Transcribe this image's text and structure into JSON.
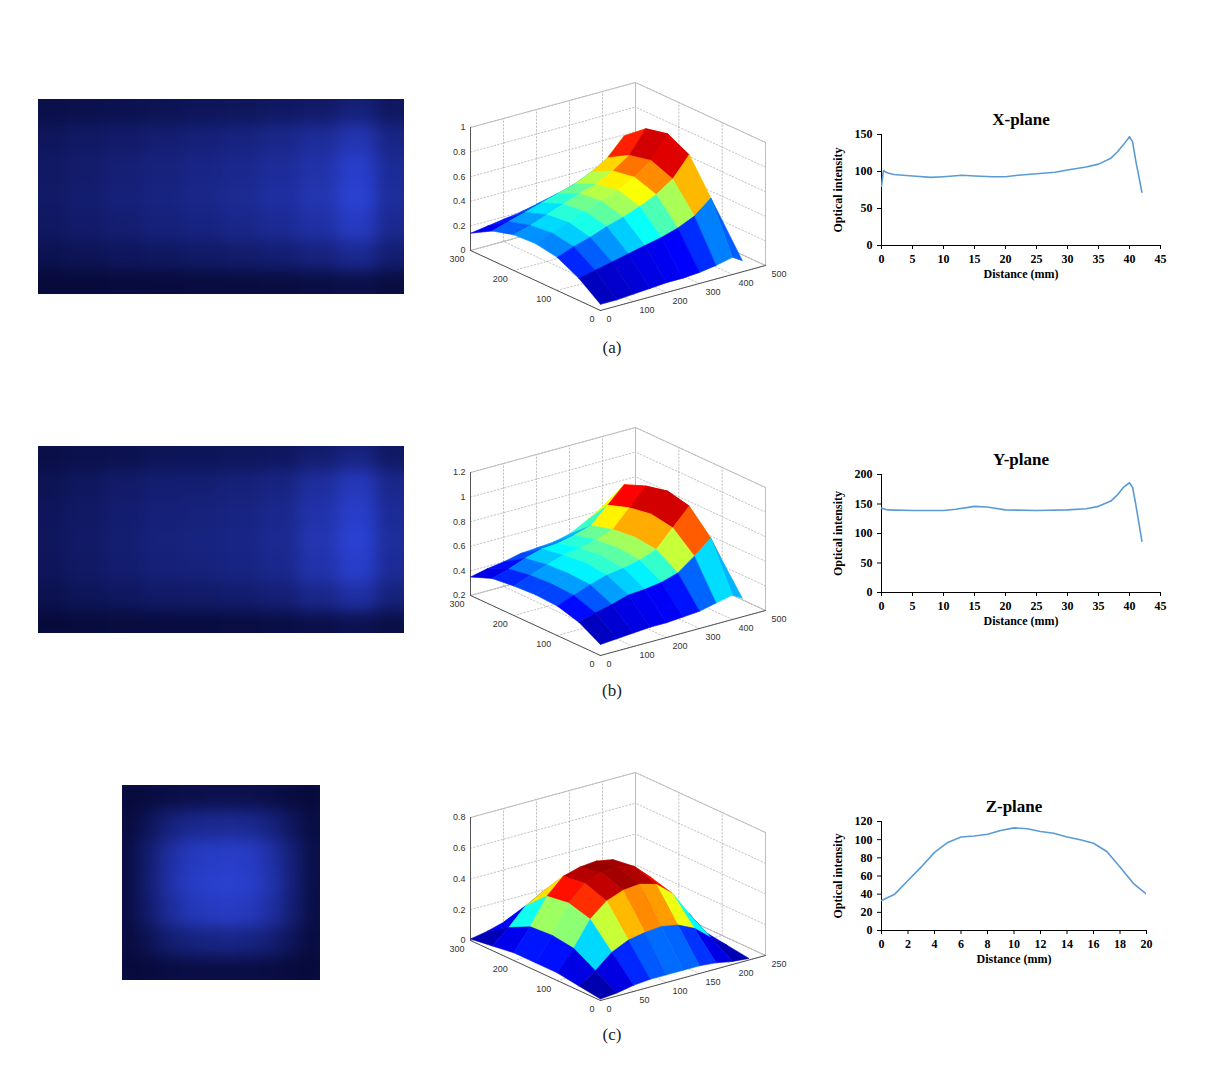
{
  "chart_data": [
    {
      "type": "surface",
      "caption": "(a)",
      "x": [
        0,
        50,
        100,
        150,
        200,
        250,
        300,
        350,
        400,
        430
      ],
      "y": [
        0,
        50,
        100,
        150,
        200,
        250,
        300
      ],
      "z": [
        [
          0.05,
          0.05,
          0.06,
          0.07,
          0.08,
          0.08,
          0.09,
          0.11,
          0.14,
          0.09
        ],
        [
          0.18,
          0.21,
          0.24,
          0.27,
          0.3,
          0.33,
          0.37,
          0.43,
          0.54,
          0.36
        ],
        [
          0.27,
          0.32,
          0.36,
          0.41,
          0.45,
          0.5,
          0.56,
          0.65,
          0.81,
          0.54
        ],
        [
          0.3,
          0.35,
          0.4,
          0.45,
          0.5,
          0.55,
          0.62,
          0.72,
          0.9,
          0.6
        ],
        [
          0.29,
          0.33,
          0.38,
          0.43,
          0.48,
          0.52,
          0.59,
          0.68,
          0.86,
          0.57
        ],
        [
          0.24,
          0.28,
          0.32,
          0.36,
          0.4,
          0.44,
          0.5,
          0.58,
          0.72,
          0.48
        ],
        [
          0.14,
          0.16,
          0.18,
          0.2,
          0.23,
          0.25,
          0.28,
          0.32,
          0.41,
          0.27
        ]
      ],
      "xlim": [
        0,
        500
      ],
      "xticks": [
        0,
        100,
        200,
        300,
        400,
        500
      ],
      "ylim": [
        0,
        300
      ],
      "yticks": [
        0,
        100,
        200,
        300
      ],
      "zlim": [
        0,
        1
      ],
      "zticks": [
        0,
        0.2,
        0.4,
        0.6,
        0.8,
        1
      ]
    },
    {
      "type": "line",
      "title": "X-plane",
      "x_label": "Distance (mm)",
      "y_label": "Optical intensity",
      "color": "#5b9bd5",
      "x": [
        0,
        0.3,
        1,
        2,
        5,
        8,
        10,
        13,
        15,
        18,
        20,
        22,
        25,
        28,
        30,
        33,
        35,
        37,
        38,
        39,
        40,
        40.5,
        41,
        42
      ],
      "values": [
        80,
        101,
        98,
        96,
        94,
        92,
        93,
        95,
        94,
        93,
        93,
        95,
        97,
        99,
        102,
        106,
        110,
        118,
        126,
        136,
        147,
        140,
        115,
        72
      ],
      "xlim": [
        0,
        45
      ],
      "xticks": [
        0,
        5,
        10,
        15,
        20,
        25,
        30,
        35,
        40,
        45
      ],
      "ylim": [
        0,
        150
      ],
      "yticks": [
        0,
        50,
        100,
        150
      ]
    },
    {
      "type": "surface",
      "caption": "(b)",
      "x": [
        0,
        50,
        100,
        150,
        200,
        250,
        300,
        350,
        400,
        430
      ],
      "y": [
        0,
        50,
        100,
        150,
        200,
        250,
        300
      ],
      "z": [
        [
          0.29,
          0.3,
          0.31,
          0.32,
          0.32,
          0.33,
          0.34,
          0.37,
          0.4,
          0.35
        ],
        [
          0.39,
          0.43,
          0.46,
          0.5,
          0.51,
          0.53,
          0.57,
          0.67,
          0.78,
          0.6
        ],
        [
          0.44,
          0.49,
          0.54,
          0.58,
          0.6,
          0.63,
          0.68,
          0.82,
          0.96,
          0.73
        ],
        [
          0.45,
          0.5,
          0.55,
          0.6,
          0.62,
          0.65,
          0.7,
          0.85,
          1.0,
          0.75
        ],
        [
          0.44,
          0.49,
          0.54,
          0.58,
          0.6,
          0.63,
          0.68,
          0.82,
          0.96,
          0.73
        ],
        [
          0.42,
          0.46,
          0.51,
          0.55,
          0.56,
          0.59,
          0.63,
          0.76,
          0.89,
          0.68
        ],
        [
          0.35,
          0.38,
          0.4,
          0.43,
          0.44,
          0.45,
          0.48,
          0.55,
          0.63,
          0.5
        ]
      ],
      "xlim": [
        0,
        500
      ],
      "xticks": [
        0,
        100,
        200,
        300,
        400,
        500
      ],
      "ylim": [
        0,
        300
      ],
      "yticks": [
        0,
        100,
        200,
        300
      ],
      "zlim": [
        0.2,
        1.2
      ],
      "zticks": [
        0.2,
        0.4,
        0.6,
        0.8,
        1,
        1.2
      ]
    },
    {
      "type": "line",
      "title": "Y-plane",
      "x_label": "Distance (mm)",
      "y_label": "Optical intensity",
      "color": "#5b9bd5",
      "x": [
        0,
        1,
        5,
        10,
        12,
        15,
        17,
        20,
        25,
        30,
        33,
        35,
        37,
        38,
        39,
        40,
        40.5,
        41,
        42
      ],
      "values": [
        143,
        140,
        139,
        139,
        141,
        146,
        145,
        140,
        139,
        140,
        142,
        146,
        155,
        165,
        178,
        186,
        178,
        150,
        87
      ],
      "xlim": [
        0,
        45
      ],
      "xticks": [
        0,
        5,
        10,
        15,
        20,
        25,
        30,
        35,
        40,
        45
      ],
      "ylim": [
        0,
        200
      ],
      "yticks": [
        0,
        50,
        100,
        150,
        200
      ]
    },
    {
      "type": "surface",
      "caption": "(c)",
      "x": [
        0,
        25,
        50,
        75,
        100,
        125,
        150,
        175,
        200,
        225
      ],
      "y": [
        0,
        50,
        100,
        150,
        200,
        250,
        300
      ],
      "z": [
        [
          0.01,
          0.02,
          0.04,
          0.05,
          0.05,
          0.05,
          0.05,
          0.04,
          0.02,
          0.01
        ],
        [
          0.03,
          0.1,
          0.19,
          0.24,
          0.26,
          0.27,
          0.25,
          0.2,
          0.11,
          0.03
        ],
        [
          0.05,
          0.18,
          0.34,
          0.43,
          0.47,
          0.48,
          0.45,
          0.36,
          0.2,
          0.05
        ],
        [
          0.05,
          0.2,
          0.38,
          0.48,
          0.52,
          0.53,
          0.5,
          0.4,
          0.22,
          0.06
        ],
        [
          0.05,
          0.19,
          0.36,
          0.46,
          0.49,
          0.5,
          0.48,
          0.38,
          0.21,
          0.06
        ],
        [
          0.03,
          0.12,
          0.23,
          0.29,
          0.31,
          0.32,
          0.3,
          0.24,
          0.13,
          0.04
        ],
        [
          0.01,
          0.03,
          0.06,
          0.07,
          0.08,
          0.08,
          0.08,
          0.06,
          0.03,
          0.01
        ]
      ],
      "xlim": [
        0,
        250
      ],
      "xticks": [
        0,
        50,
        100,
        150,
        200,
        250
      ],
      "ylim": [
        0,
        300
      ],
      "yticks": [
        0,
        100,
        200,
        300
      ],
      "zlim": [
        0,
        0.8
      ],
      "zticks": [
        0,
        0.2,
        0.4,
        0.6,
        0.8
      ]
    },
    {
      "type": "line",
      "title": "Z-plane",
      "x_label": "Distance (mm)",
      "y_label": "Optical intensity",
      "color": "#5b9bd5",
      "x": [
        0,
        1,
        2,
        3,
        4,
        5,
        6,
        7,
        8,
        9,
        10,
        11,
        12,
        13,
        14,
        15,
        16,
        17,
        18,
        19,
        20
      ],
      "values": [
        33,
        40,
        55,
        70,
        86,
        97,
        103,
        104,
        106,
        110,
        113,
        112,
        109,
        107,
        103,
        100,
        96,
        87,
        70,
        52,
        40
      ],
      "xlim": [
        0,
        20
      ],
      "xticks": [
        0,
        2,
        4,
        6,
        8,
        10,
        12,
        14,
        16,
        18,
        20
      ],
      "ylim": [
        0,
        120
      ],
      "yticks": [
        0,
        20,
        40,
        60,
        80,
        100,
        120
      ]
    }
  ]
}
